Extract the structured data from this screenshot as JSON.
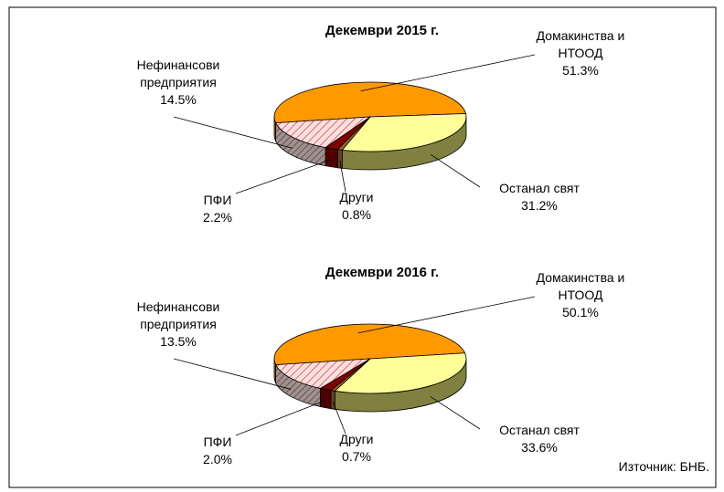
{
  "source": "Източник: БНБ.",
  "chart_data": [
    {
      "type": "pie",
      "title": "Декември 2015 г.",
      "categories": [
        "Домакинства и НТООД",
        "Останал свят",
        "Други",
        "ПФИ",
        "Нефинансови предприятия"
      ],
      "values": [
        51.3,
        31.2,
        0.8,
        2.2,
        14.5
      ],
      "value_labels": [
        "51.3%",
        "31.2%",
        "0.8%",
        "2.2%",
        "14.5%"
      ],
      "colors": [
        "#ff9900",
        "#ffff99",
        "#996633",
        "#800000",
        "#ffcccc"
      ]
    },
    {
      "type": "pie",
      "title": "Декември 2016 г.",
      "categories": [
        "Домакинства и НТООД",
        "Останал свят",
        "Други",
        "ПФИ",
        "Нефинансови предприятия"
      ],
      "values": [
        50.1,
        33.6,
        0.7,
        2.0,
        13.5
      ],
      "value_labels": [
        "50.1%",
        "33.6%",
        "0.7%",
        "2.0%",
        "13.5%"
      ],
      "colors": [
        "#ff9900",
        "#ffff99",
        "#996633",
        "#800000",
        "#ffcccc"
      ]
    }
  ]
}
